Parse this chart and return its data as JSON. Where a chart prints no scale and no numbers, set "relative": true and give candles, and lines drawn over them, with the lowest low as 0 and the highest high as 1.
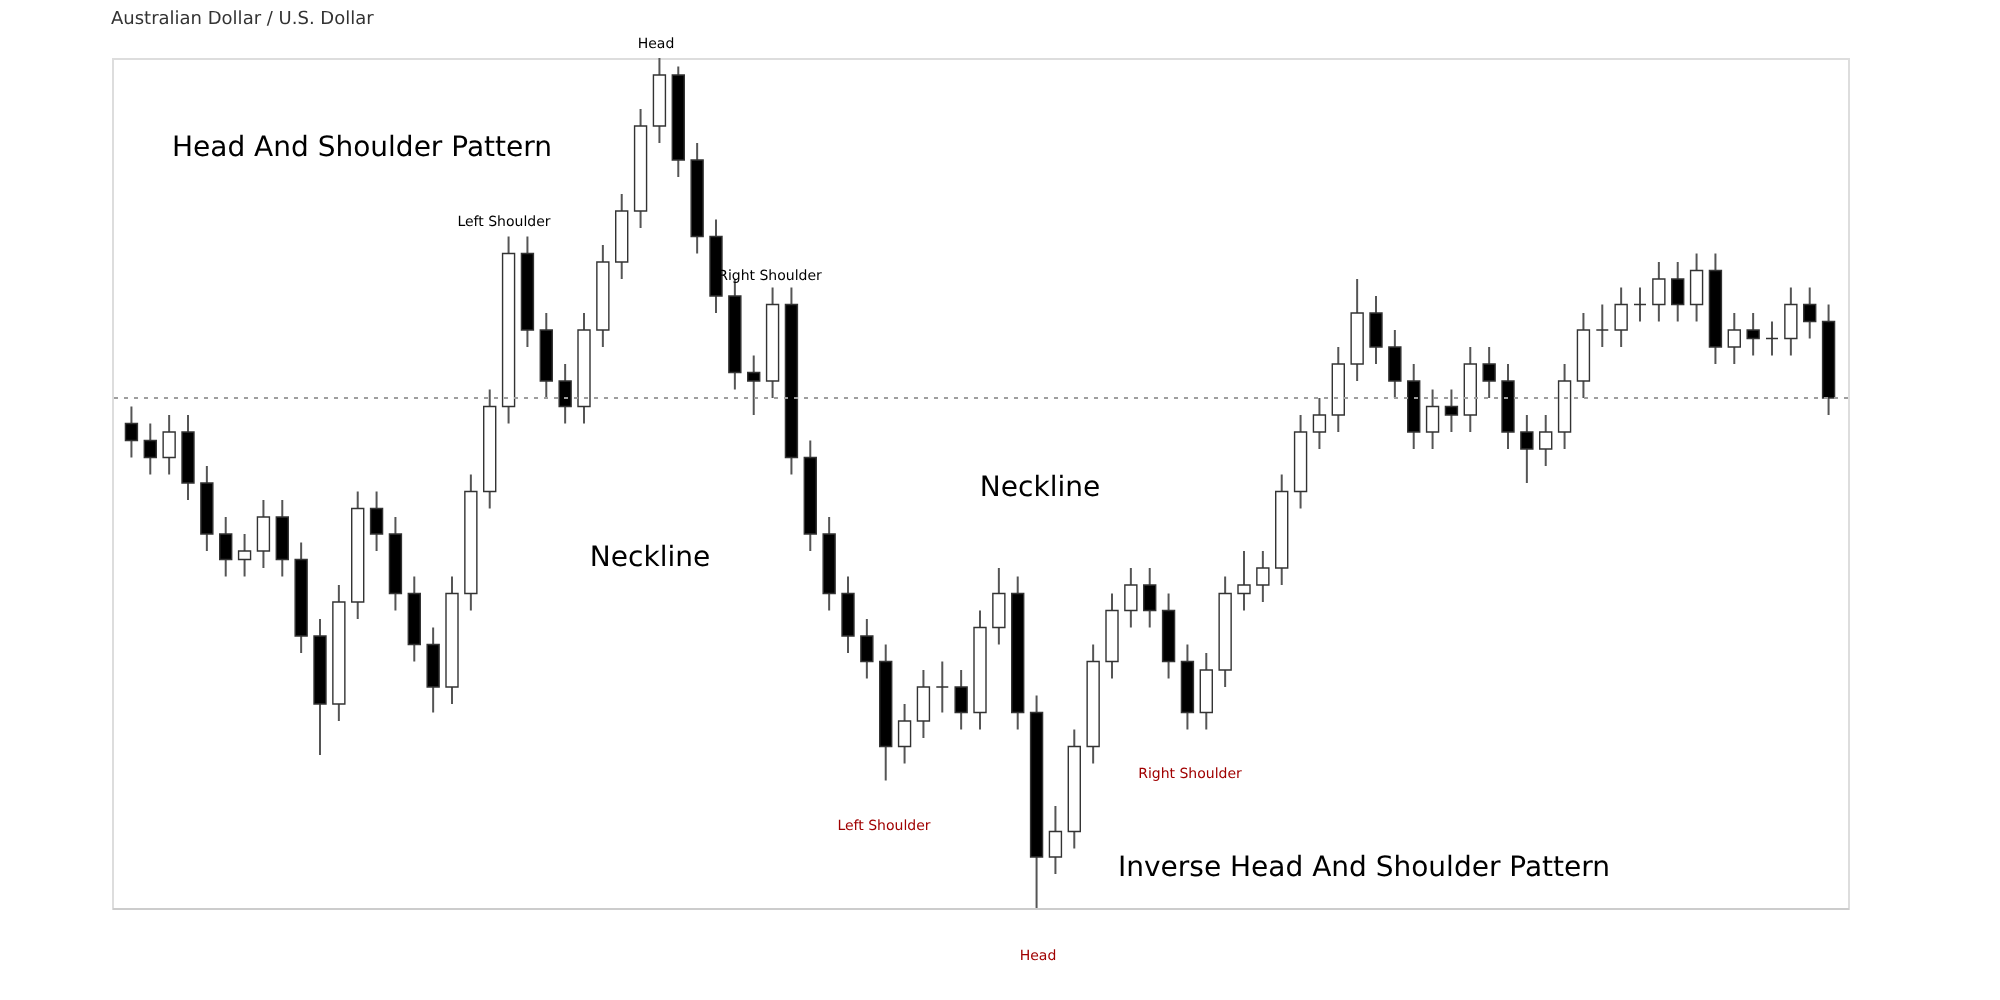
{
  "chart_data": {
    "type": "candlestick",
    "title": "Australian Dollar / U.S. Dollar",
    "relative": true,
    "tick_labels": false,
    "grid": false,
    "categories": [
      null,
      null,
      null,
      null,
      null,
      null,
      null,
      null,
      null,
      null,
      null,
      null,
      null,
      null,
      null,
      null,
      null,
      null,
      null,
      null,
      null,
      null,
      null,
      null,
      null,
      null,
      null,
      null,
      null,
      null,
      null,
      null,
      null,
      null,
      null,
      null,
      null,
      null,
      null,
      null,
      null,
      null,
      null,
      null,
      null,
      null,
      null,
      null,
      null,
      null,
      null,
      null,
      null,
      null,
      null,
      null,
      null,
      null,
      null,
      null,
      null,
      null,
      null,
      null,
      null,
      null,
      null,
      null,
      null,
      null,
      null,
      null,
      null,
      null,
      null,
      null,
      null,
      null,
      null,
      null,
      null,
      null,
      null,
      null,
      null,
      null,
      null,
      null,
      null,
      null,
      null
    ],
    "ohlc": [
      [
        0.57,
        0.59,
        0.53,
        0.55
      ],
      [
        0.55,
        0.57,
        0.51,
        0.53
      ],
      [
        0.53,
        0.58,
        0.51,
        0.56
      ],
      [
        0.56,
        0.58,
        0.48,
        0.5
      ],
      [
        0.5,
        0.52,
        0.42,
        0.44
      ],
      [
        0.44,
        0.46,
        0.39,
        0.41
      ],
      [
        0.41,
        0.44,
        0.39,
        0.42
      ],
      [
        0.42,
        0.48,
        0.4,
        0.46
      ],
      [
        0.46,
        0.48,
        0.39,
        0.41
      ],
      [
        0.41,
        0.43,
        0.3,
        0.32
      ],
      [
        0.32,
        0.34,
        0.18,
        0.24
      ],
      [
        0.24,
        0.38,
        0.22,
        0.36
      ],
      [
        0.36,
        0.49,
        0.34,
        0.47
      ],
      [
        0.47,
        0.49,
        0.42,
        0.44
      ],
      [
        0.44,
        0.46,
        0.35,
        0.37
      ],
      [
        0.37,
        0.39,
        0.29,
        0.31
      ],
      [
        0.31,
        0.33,
        0.23,
        0.26
      ],
      [
        0.26,
        0.39,
        0.24,
        0.37
      ],
      [
        0.37,
        0.51,
        0.35,
        0.49
      ],
      [
        0.49,
        0.61,
        0.47,
        0.59
      ],
      [
        0.59,
        0.79,
        0.57,
        0.77
      ],
      [
        0.77,
        0.79,
        0.66,
        0.68
      ],
      [
        0.68,
        0.7,
        0.6,
        0.62
      ],
      [
        0.62,
        0.64,
        0.57,
        0.59
      ],
      [
        0.59,
        0.7,
        0.57,
        0.68
      ],
      [
        0.68,
        0.78,
        0.66,
        0.76
      ],
      [
        0.76,
        0.84,
        0.74,
        0.82
      ],
      [
        0.82,
        0.94,
        0.8,
        0.92
      ],
      [
        0.92,
        1.0,
        0.9,
        0.98
      ],
      [
        0.98,
        0.99,
        0.86,
        0.88
      ],
      [
        0.88,
        0.9,
        0.77,
        0.79
      ],
      [
        0.79,
        0.81,
        0.7,
        0.72
      ],
      [
        0.72,
        0.74,
        0.61,
        0.63
      ],
      [
        0.63,
        0.65,
        0.58,
        0.62
      ],
      [
        0.62,
        0.73,
        0.6,
        0.71
      ],
      [
        0.71,
        0.73,
        0.51,
        0.53
      ],
      [
        0.53,
        0.55,
        0.42,
        0.44
      ],
      [
        0.44,
        0.46,
        0.35,
        0.37
      ],
      [
        0.37,
        0.39,
        0.3,
        0.32
      ],
      [
        0.32,
        0.34,
        0.27,
        0.29
      ],
      [
        0.29,
        0.31,
        0.15,
        0.19
      ],
      [
        0.19,
        0.24,
        0.17,
        0.22
      ],
      [
        0.22,
        0.28,
        0.2,
        0.26
      ],
      [
        0.26,
        0.29,
        0.23,
        0.26
      ],
      [
        0.26,
        0.28,
        0.21,
        0.23
      ],
      [
        0.23,
        0.35,
        0.21,
        0.33
      ],
      [
        0.33,
        0.4,
        0.31,
        0.37
      ],
      [
        0.37,
        0.39,
        0.21,
        0.23
      ],
      [
        0.23,
        0.25,
        0.0,
        0.06
      ],
      [
        0.06,
        0.12,
        0.04,
        0.09
      ],
      [
        0.09,
        0.21,
        0.07,
        0.19
      ],
      [
        0.19,
        0.31,
        0.17,
        0.29
      ],
      [
        0.29,
        0.37,
        0.27,
        0.35
      ],
      [
        0.35,
        0.4,
        0.33,
        0.38
      ],
      [
        0.38,
        0.4,
        0.33,
        0.35
      ],
      [
        0.35,
        0.37,
        0.27,
        0.29
      ],
      [
        0.29,
        0.31,
        0.21,
        0.23
      ],
      [
        0.23,
        0.3,
        0.21,
        0.28
      ],
      [
        0.28,
        0.39,
        0.26,
        0.37
      ],
      [
        0.37,
        0.42,
        0.35,
        0.38
      ],
      [
        0.38,
        0.42,
        0.36,
        0.4
      ],
      [
        0.4,
        0.51,
        0.38,
        0.49
      ],
      [
        0.49,
        0.58,
        0.47,
        0.56
      ],
      [
        0.56,
        0.6,
        0.54,
        0.58
      ],
      [
        0.58,
        0.66,
        0.56,
        0.64
      ],
      [
        0.64,
        0.74,
        0.62,
        0.7
      ],
      [
        0.7,
        0.72,
        0.64,
        0.66
      ],
      [
        0.66,
        0.68,
        0.6,
        0.62
      ],
      [
        0.62,
        0.64,
        0.54,
        0.56
      ],
      [
        0.56,
        0.61,
        0.54,
        0.59
      ],
      [
        0.59,
        0.61,
        0.56,
        0.58
      ],
      [
        0.58,
        0.66,
        0.56,
        0.64
      ],
      [
        0.64,
        0.66,
        0.6,
        0.62
      ],
      [
        0.62,
        0.64,
        0.54,
        0.56
      ],
      [
        0.56,
        0.58,
        0.5,
        0.54
      ],
      [
        0.54,
        0.58,
        0.52,
        0.56
      ],
      [
        0.56,
        0.64,
        0.54,
        0.62
      ],
      [
        0.62,
        0.7,
        0.6,
        0.68
      ],
      [
        0.68,
        0.71,
        0.66,
        0.68
      ],
      [
        0.68,
        0.73,
        0.66,
        0.71
      ],
      [
        0.71,
        0.73,
        0.69,
        0.71
      ],
      [
        0.71,
        0.76,
        0.69,
        0.74
      ],
      [
        0.74,
        0.76,
        0.69,
        0.71
      ],
      [
        0.71,
        0.77,
        0.69,
        0.75
      ],
      [
        0.75,
        0.77,
        0.64,
        0.66
      ],
      [
        0.66,
        0.7,
        0.64,
        0.68
      ],
      [
        0.68,
        0.7,
        0.65,
        0.67
      ],
      [
        0.67,
        0.69,
        0.65,
        0.67
      ],
      [
        0.67,
        0.73,
        0.65,
        0.71
      ],
      [
        0.71,
        0.73,
        0.67,
        0.69
      ],
      [
        0.69,
        0.71,
        0.58,
        0.6
      ]
    ],
    "ref_lines": [
      {
        "axis": "y",
        "value": 0.6,
        "color": "#9e9e9e",
        "line_style": "dotted"
      }
    ],
    "annotations": [
      "Head And Shoulder Pattern",
      "Left Shoulder",
      "Head",
      "Right Shoulder",
      "Neckline",
      "Neckline",
      "Left Shoulder",
      "Head",
      "Right Shoulder",
      "Inverse Head And Shoulder Pattern"
    ]
  }
}
